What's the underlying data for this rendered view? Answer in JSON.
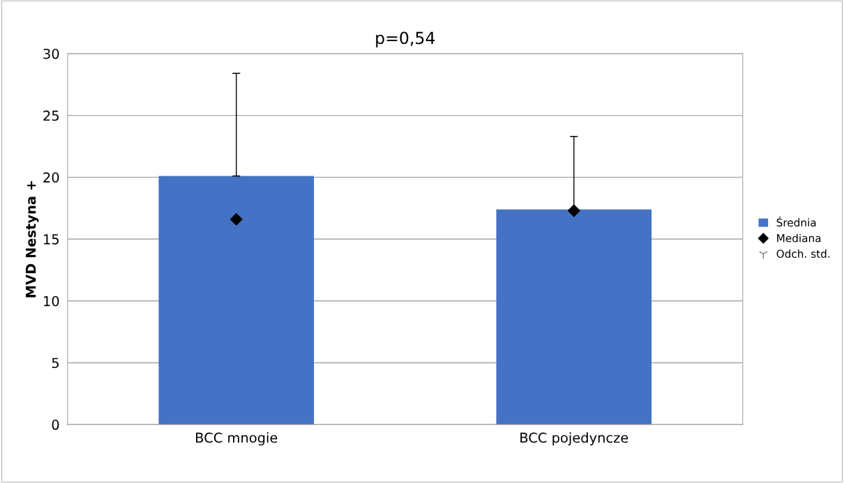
{
  "chart_data": {
    "type": "bar",
    "title": "p=0,54",
    "ylabel": "MVD Nestyna +",
    "categories": [
      "BCC mnogie",
      "BCC pojedyncze"
    ],
    "series": [
      {
        "name": "Średnia",
        "color": "#4472c4",
        "values": [
          20.1,
          17.4
        ],
        "errors": [
          [
            20.1,
            28.4
          ],
          [
            17.4,
            23.3
          ]
        ]
      },
      {
        "name": "Mediana",
        "type": "scatter",
        "marker": "diamond",
        "color": "#000000",
        "values": [
          16.6,
          17.3
        ]
      }
    ],
    "annotations": [
      "Odch. std."
    ],
    "ylim": [
      0,
      30
    ],
    "yticks": [
      0,
      5,
      10,
      15,
      20,
      25,
      30
    ],
    "grid": "y",
    "legend": "right"
  }
}
